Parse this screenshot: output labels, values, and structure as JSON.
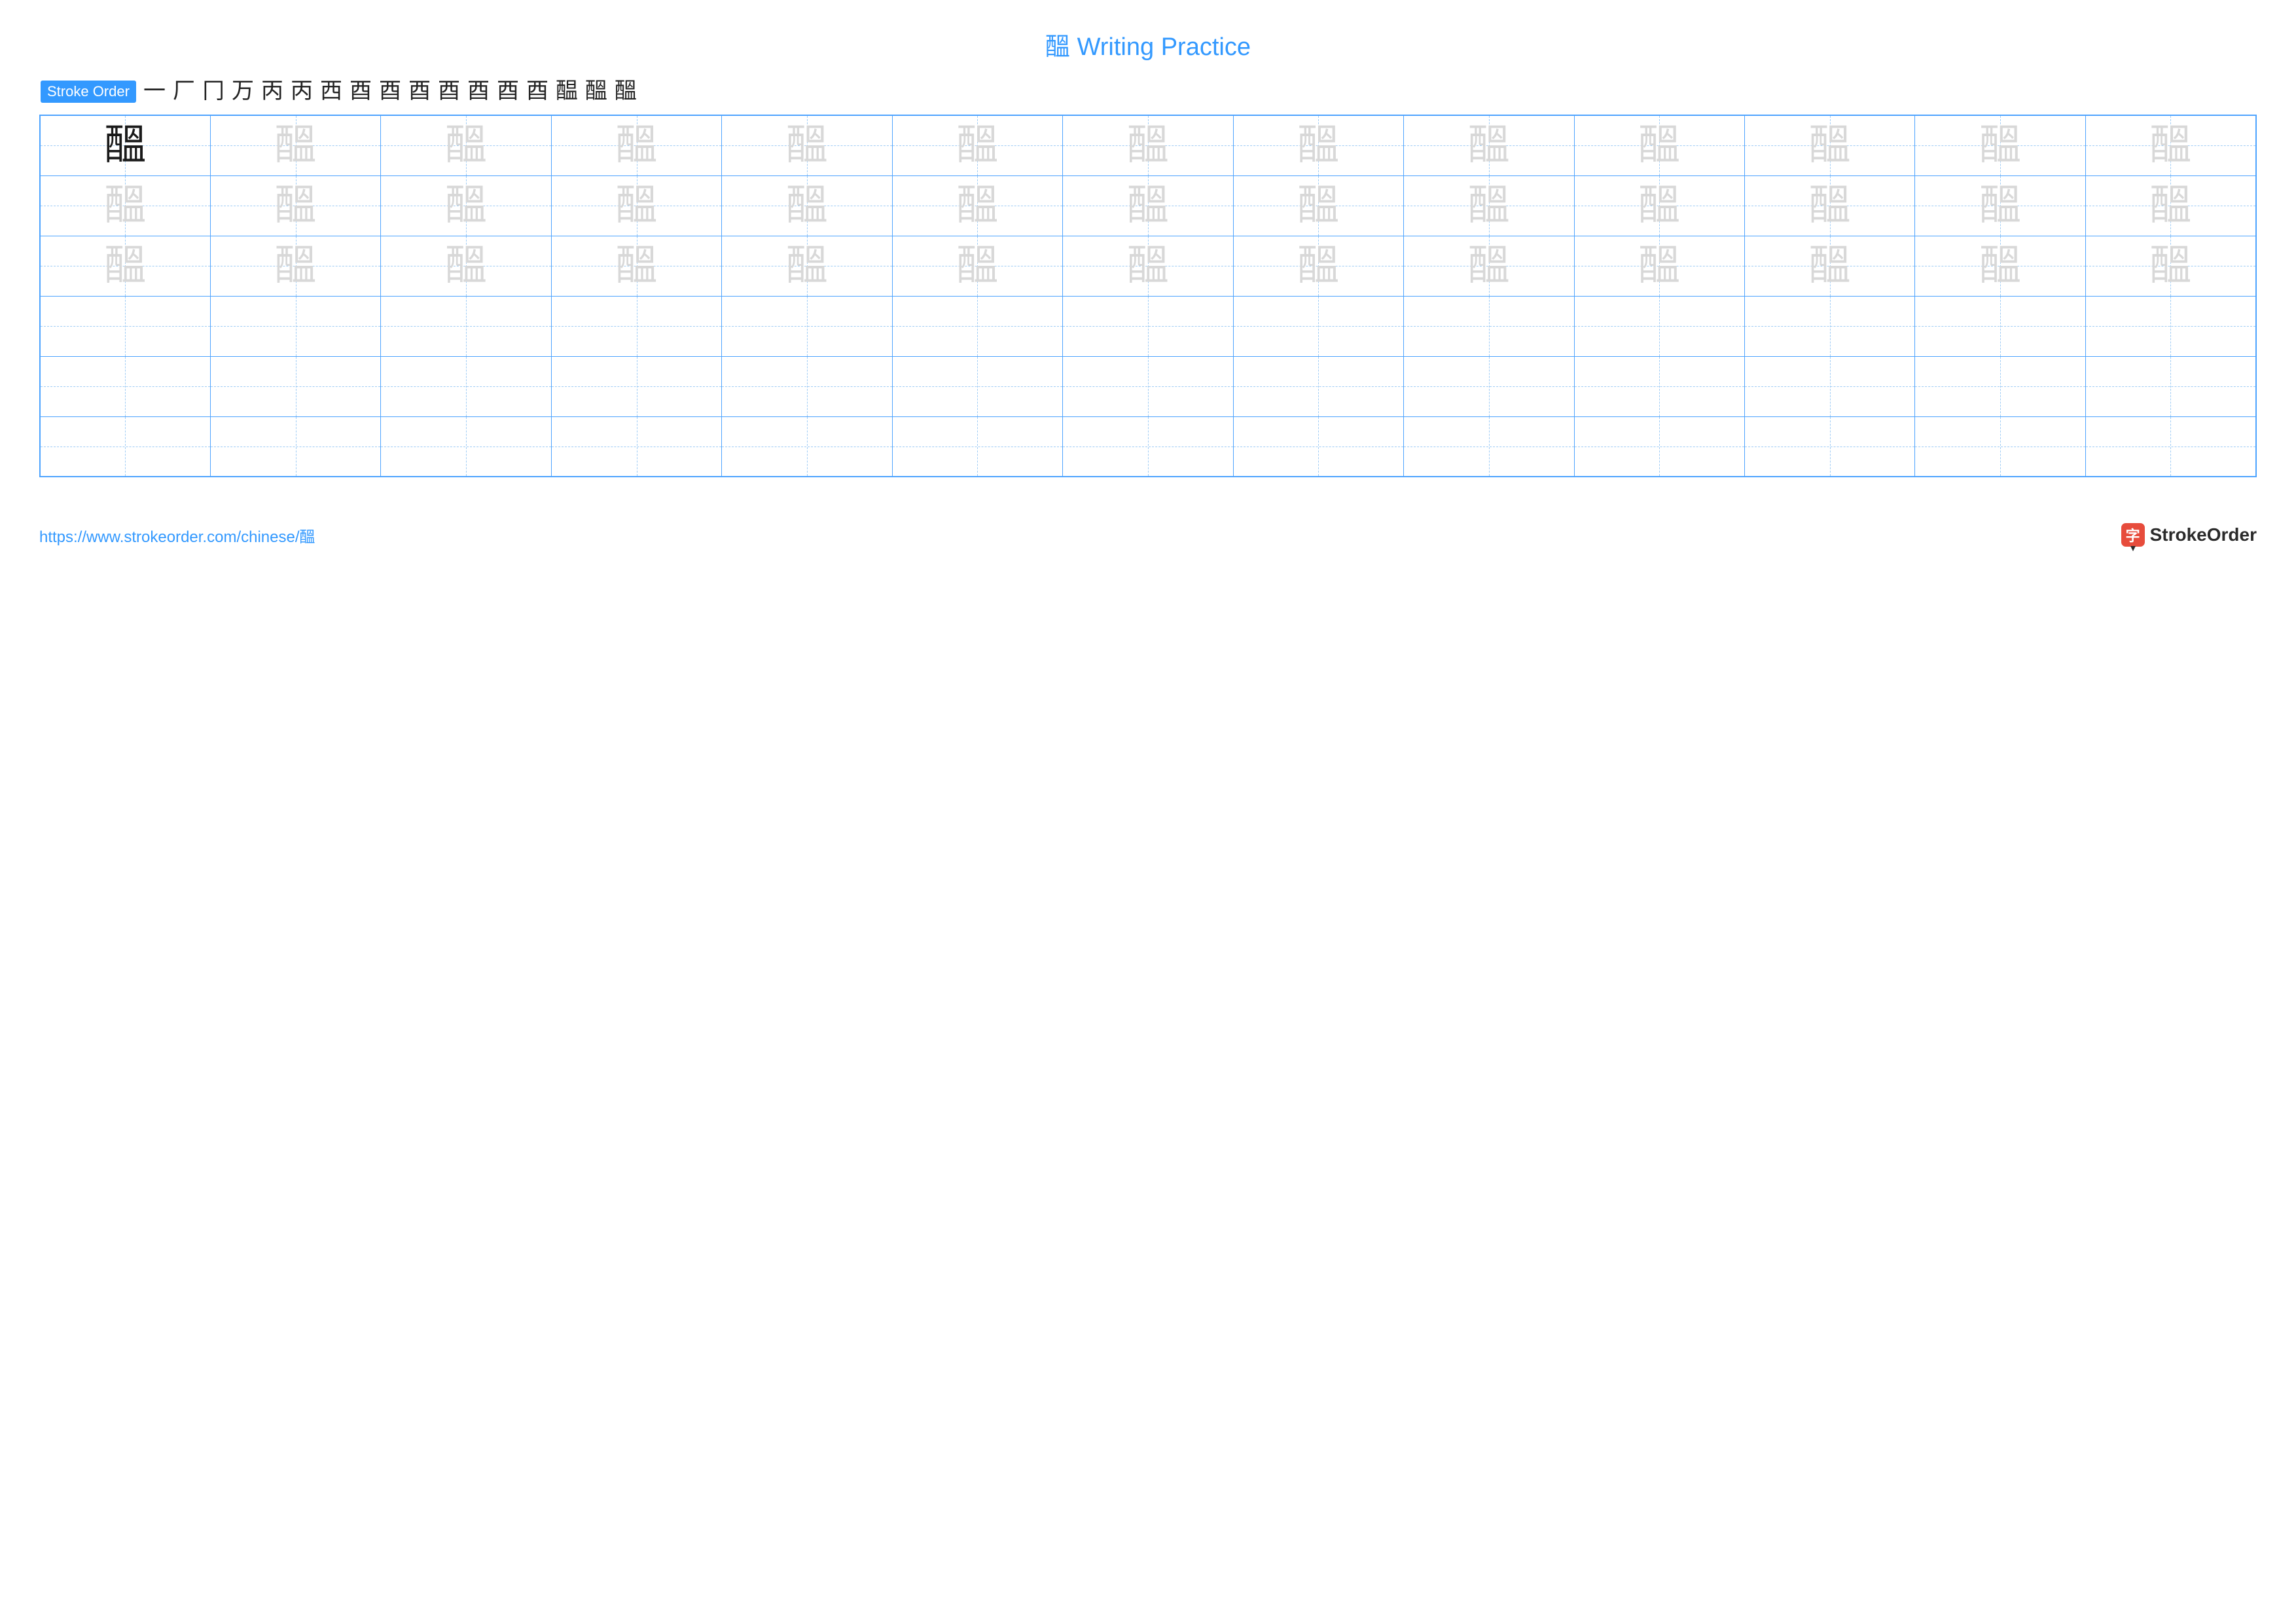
{
  "title": "醞 Writing Practice",
  "strokeOrder": {
    "label": "Stroke Order",
    "steps": [
      "一",
      "厂",
      "冂",
      "万",
      "丙",
      "丙",
      "西",
      "酉",
      "酉",
      "酉",
      "酉",
      "酉",
      "酉",
      "酉",
      "醖",
      "醞",
      "醞"
    ]
  },
  "practice": {
    "character": "醞",
    "rows": 6,
    "cols": 13,
    "traceRows": 3
  },
  "footer": {
    "url": "https://www.strokeorder.com/chinese/醞",
    "brandIcon": "字",
    "brandText": "StrokeOrder"
  },
  "colors": {
    "accent": "#3399ff",
    "gridBorder": "#4da3ff",
    "guide": "#9fccf5",
    "trace": "#d8d8d8",
    "solid": "#1a1a1a",
    "brandRed": "#e74c3c",
    "text": "#2b2b2b",
    "background": "#ffffff"
  },
  "typography": {
    "titleSize": 38,
    "charSize": 64,
    "strokeStepSize": 34,
    "footerUrlSize": 24,
    "brandSize": 28
  }
}
